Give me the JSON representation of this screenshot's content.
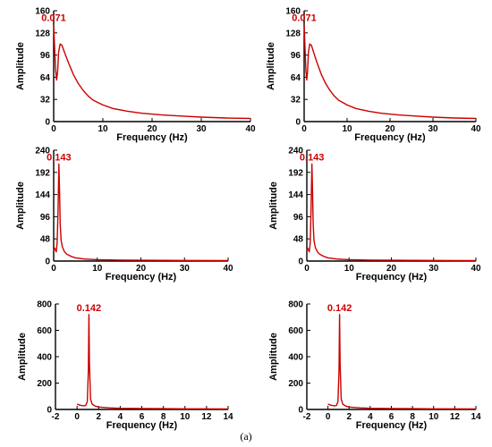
{
  "caption": "(a)",
  "chart_data": [
    {
      "type": "line",
      "xlabel": "Frequency (Hz)",
      "ylabel": "Amplitude",
      "xlim": [
        0,
        40
      ],
      "ylim": [
        0,
        160
      ],
      "xticks": [
        0,
        10,
        20,
        30,
        40
      ],
      "yticks": [
        0,
        32,
        64,
        96,
        128,
        160
      ],
      "peak_label": "0.071",
      "line_color": "#cc0000",
      "series": [
        {
          "x": [
            0,
            0.2,
            0.4,
            0.6,
            0.8,
            1.0,
            1.3,
            1.7,
            2.2,
            3,
            4,
            5,
            6,
            7,
            8,
            10,
            12,
            15,
            18,
            22,
            26,
            30,
            35,
            40
          ],
          "values": [
            140,
            105,
            75,
            60,
            72,
            100,
            112,
            110,
            100,
            85,
            68,
            55,
            45,
            37,
            31,
            24,
            19,
            15,
            12,
            9.5,
            8,
            6.5,
            5.2,
            4.5
          ]
        }
      ]
    },
    {
      "type": "line",
      "xlabel": "Frequency (Hz)",
      "ylabel": "Amplitude",
      "xlim": [
        0,
        40
      ],
      "ylim": [
        0,
        160
      ],
      "xticks": [
        0,
        10,
        20,
        30,
        40
      ],
      "yticks": [
        0,
        32,
        64,
        96,
        128,
        160
      ],
      "peak_label": "0.071",
      "line_color": "#cc0000",
      "series": [
        {
          "x": [
            0,
            0.2,
            0.4,
            0.6,
            0.8,
            1.0,
            1.3,
            1.7,
            2.2,
            3,
            4,
            5,
            6,
            7,
            8,
            10,
            12,
            15,
            18,
            22,
            26,
            30,
            35,
            40
          ],
          "values": [
            140,
            105,
            75,
            60,
            72,
            100,
            112,
            110,
            100,
            85,
            68,
            55,
            45,
            37,
            31,
            24,
            19,
            15,
            12,
            9.5,
            8,
            6.5,
            5.2,
            4.5
          ]
        }
      ]
    },
    {
      "type": "line",
      "xlabel": "Frequency (Hz)",
      "ylabel": "Amplitude",
      "xlim": [
        0,
        40
      ],
      "ylim": [
        0,
        240
      ],
      "xticks": [
        0,
        10,
        20,
        30,
        40
      ],
      "yticks": [
        0,
        48,
        96,
        144,
        192,
        240
      ],
      "peak_label": "0.143",
      "line_color": "#cc0000",
      "series": [
        {
          "x": [
            0,
            0.2,
            0.4,
            0.6,
            0.8,
            1.0,
            1.2,
            1.35,
            1.5,
            1.7,
            2.0,
            2.5,
            3,
            4,
            5,
            7,
            10,
            15,
            20,
            30,
            40
          ],
          "values": [
            22,
            28,
            24,
            20,
            40,
            110,
            210,
            150,
            80,
            45,
            30,
            20,
            15,
            10,
            7,
            4.5,
            3,
            2.2,
            1.8,
            1.3,
            1
          ]
        }
      ]
    },
    {
      "type": "line",
      "xlabel": "Frequency (Hz)",
      "ylabel": "Amplitude",
      "xlim": [
        0,
        40
      ],
      "ylim": [
        0,
        240
      ],
      "xticks": [
        0,
        10,
        20,
        30,
        40
      ],
      "yticks": [
        0,
        48,
        96,
        144,
        192,
        240
      ],
      "peak_label": "0.143",
      "line_color": "#cc0000",
      "series": [
        {
          "x": [
            0,
            0.2,
            0.4,
            0.6,
            0.8,
            1.0,
            1.2,
            1.35,
            1.5,
            1.7,
            2.0,
            2.5,
            3,
            4,
            5,
            7,
            10,
            15,
            20,
            30,
            40
          ],
          "values": [
            22,
            28,
            24,
            20,
            40,
            110,
            210,
            150,
            80,
            45,
            30,
            20,
            15,
            10,
            7,
            4.5,
            3,
            2.2,
            1.8,
            1.3,
            1
          ]
        }
      ]
    },
    {
      "type": "line",
      "xlabel": "Frequency (Hz)",
      "ylabel": "Amplitude",
      "xlim": [
        -2,
        14
      ],
      "ylim": [
        0,
        800
      ],
      "xticks": [
        -2,
        0,
        2,
        4,
        6,
        8,
        10,
        12,
        14
      ],
      "yticks": [
        0,
        200,
        400,
        600,
        800
      ],
      "peak_label": "0.142",
      "line_color": "#cc0000",
      "series": [
        {
          "x": [
            0,
            0.3,
            0.6,
            0.8,
            0.95,
            1.05,
            1.1,
            1.15,
            1.25,
            1.4,
            1.7,
            2,
            3,
            4,
            6,
            8,
            10,
            12,
            14
          ],
          "values": [
            40,
            32,
            28,
            30,
            60,
            300,
            720,
            350,
            80,
            40,
            25,
            18,
            12,
            9,
            7,
            6,
            5,
            5,
            4
          ]
        }
      ]
    },
    {
      "type": "line",
      "xlabel": "Frequency (Hz)",
      "ylabel": "Amplitude",
      "xlim": [
        -2,
        14
      ],
      "ylim": [
        0,
        800
      ],
      "xticks": [
        -2,
        0,
        2,
        4,
        6,
        8,
        10,
        12,
        14
      ],
      "yticks": [
        0,
        200,
        400,
        600,
        800
      ],
      "peak_label": "0.142",
      "line_color": "#cc0000",
      "series": [
        {
          "x": [
            0,
            0.3,
            0.6,
            0.8,
            0.95,
            1.05,
            1.1,
            1.15,
            1.25,
            1.4,
            1.7,
            2,
            3,
            4,
            6,
            8,
            10,
            12,
            14
          ],
          "values": [
            40,
            32,
            28,
            30,
            60,
            300,
            720,
            350,
            80,
            40,
            25,
            18,
            12,
            9,
            7,
            6,
            5,
            5,
            4
          ]
        }
      ]
    }
  ]
}
